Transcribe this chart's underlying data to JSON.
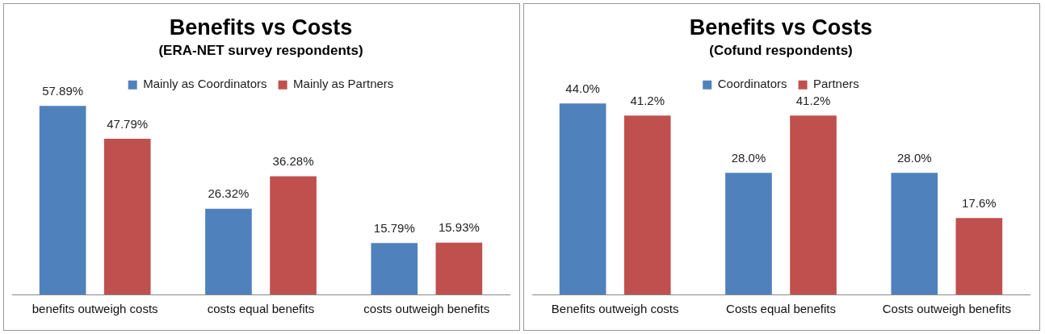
{
  "chart_data": [
    {
      "type": "bar",
      "title": "Benefits vs Costs",
      "subtitle": "(ERA-NET survey respondents)",
      "categories": [
        "benefits outweigh costs",
        "costs equal benefits",
        "costs outweigh benefits"
      ],
      "legend": "top",
      "grid": false,
      "series": [
        {
          "name": "Mainly as Coordinators",
          "color": "#4f81bd",
          "values": [
            57.89,
            26.32,
            15.79
          ],
          "value_labels": [
            "57.89%",
            "26.32%",
            "15.79%"
          ]
        },
        {
          "name": "Mainly as Partners",
          "color": "#c0504d",
          "values": [
            47.79,
            36.28,
            15.93
          ],
          "value_labels": [
            "47.79%",
            "36.28%",
            "15.93%"
          ]
        }
      ]
    },
    {
      "type": "bar",
      "title": "Benefits vs Costs",
      "subtitle": "(Cofund respondents)",
      "categories": [
        "Benefits outweigh costs",
        "Costs equal benefits",
        "Costs outweigh benefits"
      ],
      "legend": "top",
      "grid": false,
      "series": [
        {
          "name": "Coordinators",
          "color": "#4f81bd",
          "values": [
            44.0,
            28.0,
            28.0
          ],
          "value_labels": [
            "44.0%",
            "28.0%",
            "28.0%"
          ]
        },
        {
          "name": "Partners",
          "color": "#c0504d",
          "values": [
            41.2,
            41.2,
            17.6
          ],
          "value_labels": [
            "41.2%",
            "41.2%",
            "17.6%"
          ]
        }
      ]
    }
  ]
}
